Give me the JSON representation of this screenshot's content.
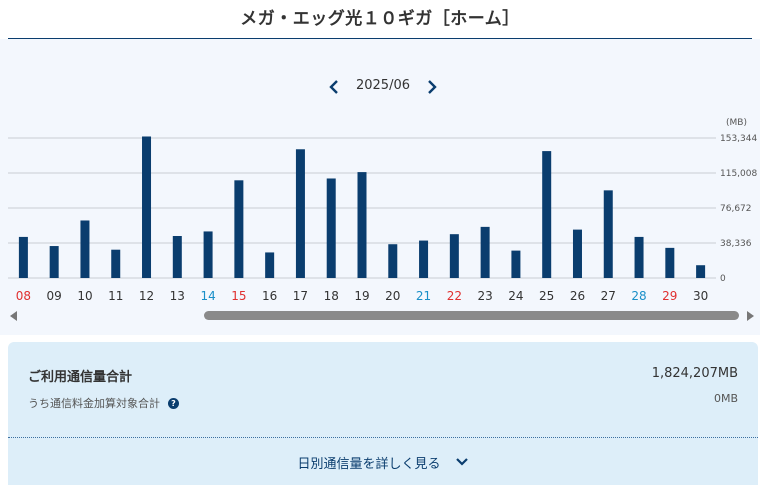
{
  "header": {
    "title": "メガ・エッグ光１０ギガ［ホーム］"
  },
  "month_nav": {
    "current": "2025/06",
    "prev_icon": "chevron-left-icon",
    "next_icon": "chevron-right-icon"
  },
  "colors": {
    "bar": "#0a3d6e",
    "weekday": "#333333",
    "saturday": "#1a8fc8",
    "sunday_holiday": "#e03030",
    "grid": "#c8ccd2"
  },
  "chart_data": {
    "type": "bar",
    "unit": "(MB)",
    "y_ticks": [
      "0",
      "38,336",
      "76,672",
      "115,008",
      "153,344"
    ],
    "ylim": [
      0,
      153344
    ],
    "categories": [
      "08",
      "09",
      "10",
      "11",
      "12",
      "13",
      "14",
      "15",
      "16",
      "17",
      "18",
      "19",
      "20",
      "21",
      "22",
      "23",
      "24",
      "25",
      "26",
      "27",
      "28",
      "29",
      "30"
    ],
    "category_types": [
      "sun",
      "wd",
      "wd",
      "wd",
      "wd",
      "wd",
      "sat",
      "sun",
      "wd",
      "wd",
      "wd",
      "wd",
      "wd",
      "sat",
      "sun",
      "wd",
      "wd",
      "wd",
      "wd",
      "wd",
      "sat",
      "sun",
      "wd"
    ],
    "values": [
      45000,
      35000,
      63000,
      31000,
      155000,
      46000,
      51000,
      107000,
      28000,
      141000,
      109000,
      116000,
      37000,
      41000,
      48000,
      56000,
      30000,
      139000,
      53000,
      96000,
      45000,
      33000,
      14000
    ],
    "grid": true
  },
  "summary": {
    "total_label": "ご利用通信量合計",
    "total_value": "1,824,207MB",
    "sub_label": "うち通信料金加算対象合計",
    "sub_value": "0MB",
    "help_icon": "question-circle-icon",
    "detail_label": "日別通信量を詳しく見る",
    "detail_icon": "chevron-down-icon"
  }
}
